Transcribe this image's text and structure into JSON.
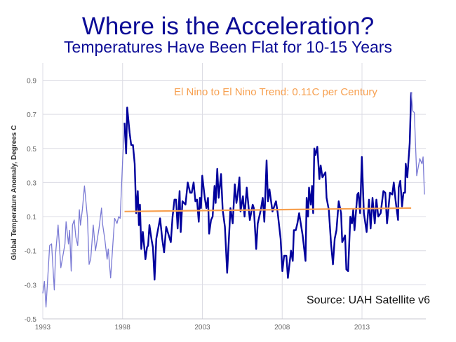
{
  "chart_data": {
    "type": "line",
    "title": "Where is the Acceleration?",
    "subtitle": "Temperatures Have Been Flat for 10-15 Years",
    "ylabel": "Global Temperature Anomaly, Degrees C",
    "xlabel": "",
    "xlim": [
      1993,
      2016.95
    ],
    "ylim": [
      -0.5,
      1.0
    ],
    "x_ticks": [
      "1993",
      "1998",
      "2003",
      "2008",
      "2013"
    ],
    "y_ticks": [
      "0.9",
      "0.7",
      "0.5",
      "0.3",
      "0.1",
      "-0.1",
      "-0.3",
      "-0.5"
    ],
    "grid": true,
    "annotations": {
      "trend_label": "El Nino to El Nino Trend:  0.11C per Century",
      "source": "Source:  UAH Satellite v6"
    },
    "colors": {
      "title": "#0c0c96",
      "highlight_series": "#00009c",
      "context_series": "#7a7ad4",
      "trend": "#f7a050",
      "grid": "#dcdce4"
    },
    "series": [
      {
        "role": "context-before",
        "points": [
          [
            1993.0,
            -0.35
          ],
          [
            1993.1,
            -0.28
          ],
          [
            1993.2,
            -0.43
          ],
          [
            1993.43,
            -0.07
          ],
          [
            1993.55,
            -0.06
          ],
          [
            1993.72,
            -0.33
          ],
          [
            1993.8,
            -0.12
          ],
          [
            1993.96,
            0.05
          ],
          [
            1994.13,
            -0.2
          ],
          [
            1994.39,
            -0.06
          ],
          [
            1994.46,
            0.07
          ],
          [
            1994.61,
            -0.06
          ],
          [
            1994.68,
            0.02
          ],
          [
            1994.78,
            -0.22
          ],
          [
            1994.86,
            0.05
          ],
          [
            1994.97,
            0.08
          ],
          [
            1995.07,
            -0.02
          ],
          [
            1995.19,
            -0.07
          ],
          [
            1995.29,
            0.14
          ],
          [
            1995.36,
            0.05
          ],
          [
            1995.48,
            0.14
          ],
          [
            1995.61,
            0.28
          ],
          [
            1995.8,
            0.09
          ],
          [
            1995.9,
            -0.18
          ],
          [
            1996.0,
            -0.15
          ],
          [
            1996.16,
            0.05
          ],
          [
            1996.3,
            -0.1
          ],
          [
            1996.52,
            0.03
          ],
          [
            1996.68,
            0.15
          ],
          [
            1996.74,
            0.06
          ],
          [
            1996.88,
            -0.03
          ],
          [
            1997.03,
            -0.15
          ],
          [
            1997.1,
            -0.09
          ],
          [
            1997.25,
            -0.26
          ],
          [
            1997.39,
            -0.06
          ],
          [
            1997.5,
            0.09
          ],
          [
            1997.65,
            0.06
          ],
          [
            1997.75,
            0.1
          ],
          [
            1997.85,
            0.09
          ],
          [
            1998.0,
            0.43
          ],
          [
            1998.12,
            0.65
          ]
        ]
      },
      {
        "role": "highlight",
        "points": [
          [
            1998.12,
            0.65
          ],
          [
            1998.22,
            0.47
          ],
          [
            1998.29,
            0.74
          ],
          [
            1998.44,
            0.59
          ],
          [
            1998.54,
            0.52
          ],
          [
            1998.65,
            0.52
          ],
          [
            1998.76,
            0.41
          ],
          [
            1998.85,
            0.12
          ],
          [
            1998.95,
            0.25
          ],
          [
            1999.02,
            0.05
          ],
          [
            1999.09,
            0.17
          ],
          [
            1999.17,
            -0.09
          ],
          [
            1999.27,
            0.01
          ],
          [
            1999.43,
            -0.15
          ],
          [
            1999.53,
            -0.08
          ],
          [
            1999.6,
            -0.07
          ],
          [
            1999.68,
            0.05
          ],
          [
            1999.82,
            -0.04
          ],
          [
            1999.9,
            -0.08
          ],
          [
            2000.0,
            -0.27
          ],
          [
            2000.11,
            -0.03
          ],
          [
            2000.35,
            0.09
          ],
          [
            2000.48,
            -0.03
          ],
          [
            2000.6,
            -0.11
          ],
          [
            2000.73,
            0.04
          ],
          [
            2001.02,
            -0.05
          ],
          [
            2001.13,
            0.1
          ],
          [
            2001.25,
            0.2
          ],
          [
            2001.35,
            0.2
          ],
          [
            2001.45,
            0.03
          ],
          [
            2001.57,
            0.25
          ],
          [
            2001.64,
            0.01
          ],
          [
            2001.75,
            0.19
          ],
          [
            2001.94,
            0.17
          ],
          [
            2002.08,
            0.3
          ],
          [
            2002.23,
            0.24
          ],
          [
            2002.33,
            0.24
          ],
          [
            2002.45,
            0.3
          ],
          [
            2002.56,
            0.19
          ],
          [
            2002.66,
            0.2
          ],
          [
            2002.77,
            0.07
          ],
          [
            2002.84,
            0.21
          ],
          [
            2002.91,
            0.15
          ],
          [
            2002.99,
            0.34
          ],
          [
            2003.15,
            0.21
          ],
          [
            2003.25,
            0.15
          ],
          [
            2003.35,
            0.21
          ],
          [
            2003.42,
            0.0
          ],
          [
            2003.54,
            0.08
          ],
          [
            2003.64,
            0.1
          ],
          [
            2003.76,
            0.28
          ],
          [
            2003.83,
            0.18
          ],
          [
            2003.93,
            0.38
          ],
          [
            2004.02,
            0.21
          ],
          [
            2004.17,
            0.35
          ],
          [
            2004.27,
            0.14
          ],
          [
            2004.41,
            0.04
          ],
          [
            2004.55,
            -0.23
          ],
          [
            2004.76,
            0.15
          ],
          [
            2004.9,
            0.06
          ],
          [
            2005.03,
            0.29
          ],
          [
            2005.13,
            0.18
          ],
          [
            2005.2,
            0.22
          ],
          [
            2005.32,
            0.33
          ],
          [
            2005.39,
            0.13
          ],
          [
            2005.54,
            0.22
          ],
          [
            2005.64,
            0.1
          ],
          [
            2005.78,
            0.27
          ],
          [
            2005.97,
            0.08
          ],
          [
            2006.15,
            0.17
          ],
          [
            2006.22,
            0.15
          ],
          [
            2006.37,
            -0.09
          ],
          [
            2006.47,
            0.06
          ],
          [
            2006.66,
            0.14
          ],
          [
            2006.78,
            0.21
          ],
          [
            2006.88,
            0.07
          ],
          [
            2007.02,
            0.43
          ],
          [
            2007.11,
            0.19
          ],
          [
            2007.2,
            0.26
          ],
          [
            2007.39,
            0.13
          ],
          [
            2007.61,
            0.19
          ],
          [
            2007.72,
            0.12
          ],
          [
            2007.9,
            -0.03
          ],
          [
            2008.01,
            -0.22
          ],
          [
            2008.12,
            -0.13
          ],
          [
            2008.26,
            -0.13
          ],
          [
            2008.36,
            -0.26
          ],
          [
            2008.55,
            -0.1
          ],
          [
            2008.66,
            -0.16
          ],
          [
            2008.73,
            0.02
          ],
          [
            2008.85,
            0.02
          ],
          [
            2008.95,
            0.06
          ],
          [
            2009.06,
            0.12
          ],
          [
            2009.28,
            -0.01
          ],
          [
            2009.46,
            -0.16
          ],
          [
            2009.53,
            0.21
          ],
          [
            2009.62,
            0.1
          ],
          [
            2009.68,
            0.27
          ],
          [
            2009.79,
            0.17
          ],
          [
            2009.87,
            0.28
          ],
          [
            2009.94,
            0.12
          ],
          [
            2010.01,
            0.5
          ],
          [
            2010.08,
            0.46
          ],
          [
            2010.2,
            0.51
          ],
          [
            2010.33,
            0.32
          ],
          [
            2010.41,
            0.4
          ],
          [
            2010.52,
            0.33
          ],
          [
            2010.71,
            0.36
          ],
          [
            2010.78,
            0.21
          ],
          [
            2010.92,
            0.14
          ],
          [
            2011.06,
            -0.06
          ],
          [
            2011.18,
            -0.18
          ],
          [
            2011.29,
            -0.03
          ],
          [
            2011.4,
            0.02
          ],
          [
            2011.54,
            0.19
          ],
          [
            2011.69,
            0.12
          ],
          [
            2011.76,
            -0.05
          ],
          [
            2011.94,
            -0.01
          ],
          [
            2012.02,
            -0.21
          ],
          [
            2012.13,
            -0.22
          ],
          [
            2012.27,
            0.1
          ],
          [
            2012.37,
            0.06
          ],
          [
            2012.45,
            0.14
          ],
          [
            2012.53,
            0.02
          ],
          [
            2012.71,
            0.23
          ],
          [
            2012.78,
            0.24
          ],
          [
            2012.88,
            0.12
          ],
          [
            2012.99,
            0.45
          ],
          [
            2013.12,
            0.12
          ],
          [
            2013.29,
            0.01
          ],
          [
            2013.44,
            0.2
          ],
          [
            2013.54,
            0.03
          ],
          [
            2013.66,
            0.21
          ],
          [
            2013.8,
            0.06
          ],
          [
            2013.9,
            0.2
          ],
          [
            2014.02,
            0.1
          ],
          [
            2014.17,
            0.12
          ],
          [
            2014.34,
            0.25
          ],
          [
            2014.46,
            0.24
          ],
          [
            2014.57,
            0.06
          ],
          [
            2014.75,
            0.24
          ],
          [
            2014.9,
            0.23
          ],
          [
            2014.99,
            0.3
          ],
          [
            2015.11,
            0.19
          ],
          [
            2015.26,
            0.08
          ],
          [
            2015.3,
            0.27
          ],
          [
            2015.4,
            0.31
          ],
          [
            2015.51,
            0.16
          ],
          [
            2015.6,
            0.24
          ],
          [
            2015.7,
            0.24
          ],
          [
            2015.74,
            0.41
          ],
          [
            2015.84,
            0.33
          ],
          [
            2015.99,
            0.53
          ],
          [
            2016.08,
            0.83
          ]
        ]
      },
      {
        "role": "context-after",
        "points": [
          [
            2016.08,
            0.83
          ],
          [
            2016.18,
            0.72
          ],
          [
            2016.28,
            0.71
          ],
          [
            2016.43,
            0.34
          ],
          [
            2016.62,
            0.44
          ],
          [
            2016.76,
            0.41
          ],
          [
            2016.83,
            0.45
          ],
          [
            2016.91,
            0.23
          ]
        ]
      },
      {
        "role": "trend",
        "points": [
          [
            1998.12,
            0.13
          ],
          [
            2016.08,
            0.15
          ]
        ]
      }
    ]
  }
}
